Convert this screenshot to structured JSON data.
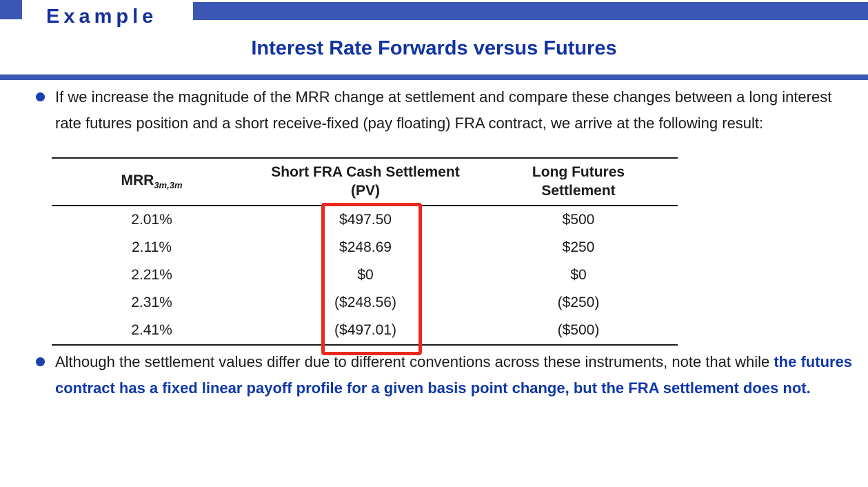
{
  "header": {
    "tag": "Example",
    "title": "Interest Rate Forwards versus Futures"
  },
  "bullets": {
    "first": "If we increase the magnitude of the MRR change at settlement and compare these changes between a long interest rate futures position and a short receive-fixed (pay floating) FRA contract, we arrive at the following result:",
    "second_normal": "Although the settlement values differ due to different conventions across these instruments, note that while ",
    "second_bold": "the futures contract has a fixed linear payoff profile for a given basis point change, but the FRA settlement does not."
  },
  "table": {
    "col1": {
      "base": "MRR",
      "sub": "3m,3m"
    },
    "col2": {
      "line1": "Short FRA Cash Settlement",
      "line2": "(PV)"
    },
    "col3": {
      "line1": "Long Futures",
      "line2": "Settlement"
    },
    "rows": [
      [
        "2.01%",
        "$497.50",
        "$500"
      ],
      [
        "2.11%",
        "$248.69",
        "$250"
      ],
      [
        "2.21%",
        "$0",
        "$0"
      ],
      [
        "2.31%",
        "($248.56)",
        "($250)"
      ],
      [
        "2.41%",
        "($497.01)",
        "($500)"
      ]
    ]
  },
  "colors": {
    "banner_blue": "#3a57b5",
    "title_blue": "#1133a3",
    "bullet_blue": "#1a3fae",
    "emphasis_blue": "#1038ab",
    "highlight_red": "#e8291c",
    "text_black": "#1b1b1b"
  }
}
